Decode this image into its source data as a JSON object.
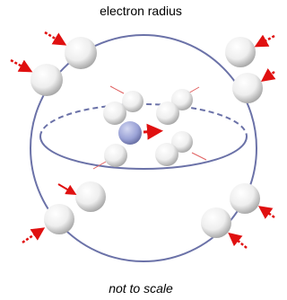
{
  "title": "electron radius",
  "caption": "not to scale"
}
